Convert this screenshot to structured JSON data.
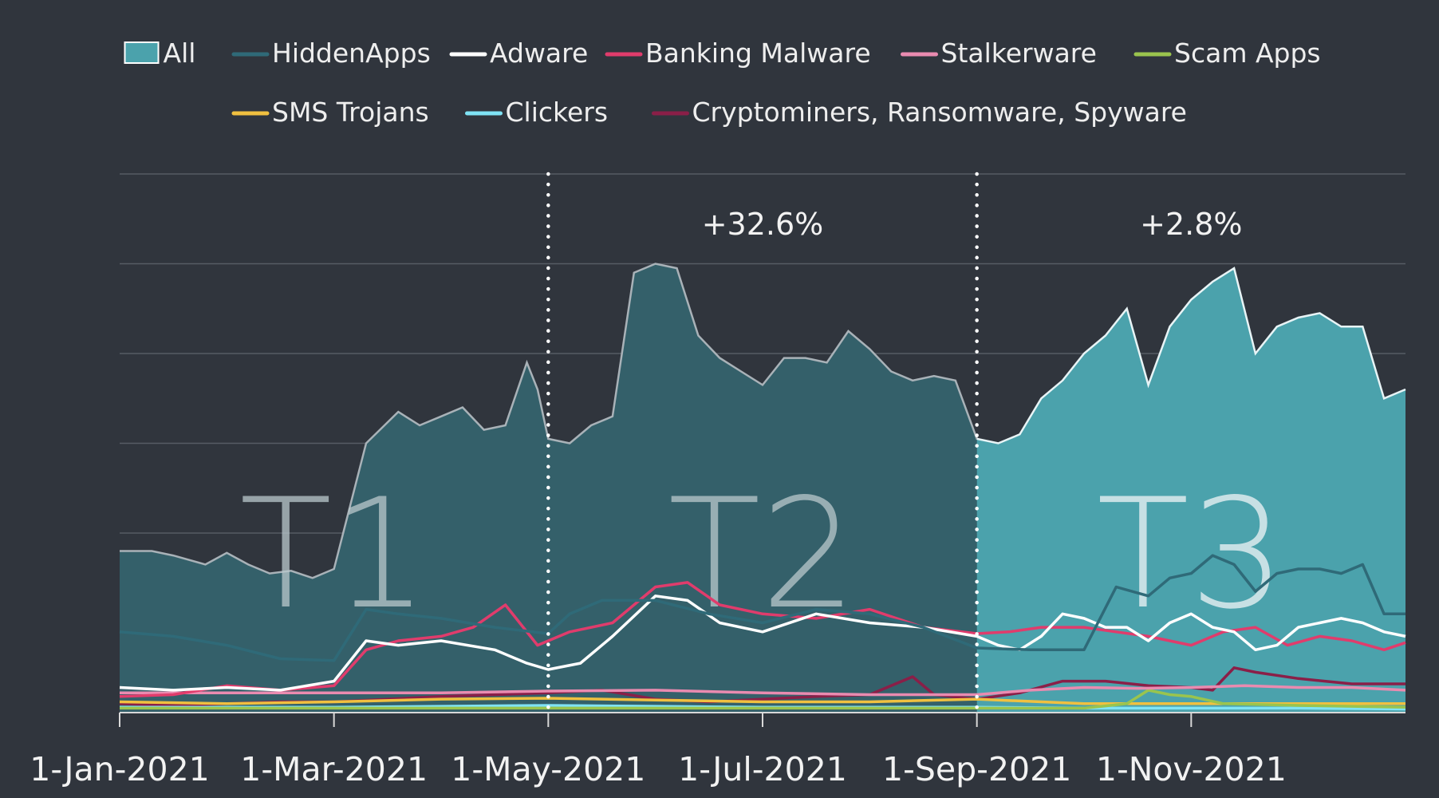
{
  "chart_data": {
    "type": "area",
    "title": "",
    "xlabel": "",
    "ylabel": "",
    "x_ticks": [
      "1-Jan-2021",
      "1-Mar-2021",
      "1-May-2021",
      "1-Jul-2021",
      "1-Sep-2021",
      "1-Nov-2021"
    ],
    "x_tick_months": [
      0,
      2,
      4,
      6,
      8,
      10
    ],
    "x_range_months": [
      0,
      12
    ],
    "y_range": [
      0,
      6
    ],
    "y_tick_labels_shown": false,
    "grid": true,
    "legend_position": "top",
    "periods": [
      {
        "label": "T1",
        "start_month": 0,
        "end_month": 4,
        "annotation": ""
      },
      {
        "label": "T2",
        "start_month": 4,
        "end_month": 8,
        "annotation": "+32.6%"
      },
      {
        "label": "T3",
        "start_month": 8,
        "end_month": 12,
        "annotation": "+2.8%"
      }
    ],
    "period_dividers_months": [
      4,
      8
    ],
    "series": [
      {
        "name": "All",
        "style": "area",
        "color": "#4ba2ac",
        "points": [
          [
            0,
            1.8
          ],
          [
            0.3,
            1.8
          ],
          [
            0.5,
            1.75
          ],
          [
            0.8,
            1.65
          ],
          [
            1.0,
            1.78
          ],
          [
            1.2,
            1.65
          ],
          [
            1.4,
            1.55
          ],
          [
            1.6,
            1.58
          ],
          [
            1.8,
            1.5
          ],
          [
            2.0,
            1.6
          ],
          [
            2.3,
            3.0
          ],
          [
            2.6,
            3.35
          ],
          [
            2.8,
            3.2
          ],
          [
            3.0,
            3.3
          ],
          [
            3.2,
            3.4
          ],
          [
            3.4,
            3.15
          ],
          [
            3.6,
            3.2
          ],
          [
            3.8,
            3.9
          ],
          [
            3.9,
            3.6
          ],
          [
            4.0,
            3.05
          ],
          [
            4.2,
            3.0
          ],
          [
            4.4,
            3.2
          ],
          [
            4.6,
            3.3
          ],
          [
            4.8,
            4.9
          ],
          [
            5.0,
            5.0
          ],
          [
            5.2,
            4.95
          ],
          [
            5.4,
            4.2
          ],
          [
            5.6,
            3.95
          ],
          [
            5.8,
            3.8
          ],
          [
            6.0,
            3.65
          ],
          [
            6.2,
            3.95
          ],
          [
            6.4,
            3.95
          ],
          [
            6.6,
            3.9
          ],
          [
            6.8,
            4.25
          ],
          [
            7.0,
            4.05
          ],
          [
            7.2,
            3.8
          ],
          [
            7.4,
            3.7
          ],
          [
            7.6,
            3.75
          ],
          [
            7.8,
            3.7
          ],
          [
            8.0,
            3.05
          ],
          [
            8.2,
            3.0
          ],
          [
            8.4,
            3.1
          ],
          [
            8.6,
            3.5
          ],
          [
            8.8,
            3.7
          ],
          [
            9.0,
            4.0
          ],
          [
            9.2,
            4.2
          ],
          [
            9.4,
            4.5
          ],
          [
            9.6,
            3.65
          ],
          [
            9.8,
            4.3
          ],
          [
            10.0,
            4.6
          ],
          [
            10.2,
            4.8
          ],
          [
            10.4,
            4.95
          ],
          [
            10.6,
            4.0
          ],
          [
            10.8,
            4.3
          ],
          [
            11.0,
            4.4
          ],
          [
            11.2,
            4.45
          ],
          [
            11.4,
            4.3
          ],
          [
            11.6,
            4.3
          ],
          [
            11.8,
            3.5
          ],
          [
            12.0,
            3.6
          ]
        ]
      },
      {
        "name": "HiddenApps",
        "style": "line",
        "color": "#2f6a78",
        "points": [
          [
            0,
            0.9
          ],
          [
            0.5,
            0.85
          ],
          [
            1.0,
            0.75
          ],
          [
            1.5,
            0.6
          ],
          [
            2.0,
            0.58
          ],
          [
            2.3,
            1.15
          ],
          [
            2.6,
            1.1
          ],
          [
            3.0,
            1.05
          ],
          [
            3.5,
            0.95
          ],
          [
            4.0,
            0.88
          ],
          [
            4.2,
            1.1
          ],
          [
            4.5,
            1.25
          ],
          [
            5.0,
            1.25
          ],
          [
            5.5,
            1.1
          ],
          [
            6.0,
            1.0
          ],
          [
            6.5,
            1.15
          ],
          [
            7.0,
            1.1
          ],
          [
            7.5,
            0.95
          ],
          [
            8.0,
            0.72
          ],
          [
            8.5,
            0.7
          ],
          [
            9.0,
            0.7
          ],
          [
            9.3,
            1.4
          ],
          [
            9.6,
            1.3
          ],
          [
            9.8,
            1.5
          ],
          [
            10.0,
            1.55
          ],
          [
            10.2,
            1.75
          ],
          [
            10.4,
            1.65
          ],
          [
            10.6,
            1.35
          ],
          [
            10.8,
            1.55
          ],
          [
            11.0,
            1.6
          ],
          [
            11.2,
            1.6
          ],
          [
            11.4,
            1.55
          ],
          [
            11.6,
            1.65
          ],
          [
            11.8,
            1.1
          ],
          [
            12.0,
            1.1
          ]
        ]
      },
      {
        "name": "Adware",
        "style": "line",
        "color": "#ffffff",
        "points": [
          [
            0,
            0.28
          ],
          [
            0.5,
            0.25
          ],
          [
            1.0,
            0.28
          ],
          [
            1.5,
            0.25
          ],
          [
            2.0,
            0.35
          ],
          [
            2.3,
            0.8
          ],
          [
            2.6,
            0.75
          ],
          [
            3.0,
            0.8
          ],
          [
            3.5,
            0.7
          ],
          [
            3.8,
            0.55
          ],
          [
            4.0,
            0.48
          ],
          [
            4.3,
            0.55
          ],
          [
            4.6,
            0.85
          ],
          [
            5.0,
            1.3
          ],
          [
            5.3,
            1.25
          ],
          [
            5.6,
            1.0
          ],
          [
            6.0,
            0.9
          ],
          [
            6.5,
            1.1
          ],
          [
            7.0,
            1.0
          ],
          [
            7.5,
            0.95
          ],
          [
            8.0,
            0.85
          ],
          [
            8.2,
            0.75
          ],
          [
            8.4,
            0.7
          ],
          [
            8.6,
            0.85
          ],
          [
            8.8,
            1.1
          ],
          [
            9.0,
            1.05
          ],
          [
            9.2,
            0.95
          ],
          [
            9.4,
            0.95
          ],
          [
            9.6,
            0.8
          ],
          [
            9.8,
            1.0
          ],
          [
            10.0,
            1.1
          ],
          [
            10.2,
            0.95
          ],
          [
            10.4,
            0.9
          ],
          [
            10.6,
            0.7
          ],
          [
            10.8,
            0.75
          ],
          [
            11.0,
            0.95
          ],
          [
            11.2,
            1.0
          ],
          [
            11.4,
            1.05
          ],
          [
            11.6,
            1.0
          ],
          [
            11.8,
            0.9
          ],
          [
            12.0,
            0.85
          ]
        ]
      },
      {
        "name": "Banking Malware",
        "style": "line",
        "color": "#e03c6c",
        "points": [
          [
            0,
            0.18
          ],
          [
            0.5,
            0.2
          ],
          [
            1.0,
            0.3
          ],
          [
            1.5,
            0.25
          ],
          [
            2.0,
            0.3
          ],
          [
            2.3,
            0.7
          ],
          [
            2.6,
            0.8
          ],
          [
            3.0,
            0.85
          ],
          [
            3.3,
            0.95
          ],
          [
            3.6,
            1.2
          ],
          [
            3.9,
            0.75
          ],
          [
            4.2,
            0.9
          ],
          [
            4.6,
            1.0
          ],
          [
            5.0,
            1.4
          ],
          [
            5.3,
            1.45
          ],
          [
            5.6,
            1.2
          ],
          [
            6.0,
            1.1
          ],
          [
            6.5,
            1.05
          ],
          [
            7.0,
            1.15
          ],
          [
            7.5,
            0.95
          ],
          [
            8.0,
            0.88
          ],
          [
            8.3,
            0.9
          ],
          [
            8.6,
            0.95
          ],
          [
            9.0,
            0.95
          ],
          [
            9.3,
            0.9
          ],
          [
            9.6,
            0.85
          ],
          [
            10.0,
            0.75
          ],
          [
            10.3,
            0.9
          ],
          [
            10.6,
            0.95
          ],
          [
            10.9,
            0.75
          ],
          [
            11.2,
            0.85
          ],
          [
            11.5,
            0.8
          ],
          [
            11.8,
            0.7
          ],
          [
            12.0,
            0.78
          ]
        ]
      },
      {
        "name": "Stalkerware",
        "style": "line",
        "color": "#e98bb0",
        "points": [
          [
            0,
            0.22
          ],
          [
            1.0,
            0.22
          ],
          [
            2.0,
            0.22
          ],
          [
            3.0,
            0.22
          ],
          [
            4.0,
            0.24
          ],
          [
            5.0,
            0.25
          ],
          [
            6.0,
            0.22
          ],
          [
            7.0,
            0.2
          ],
          [
            8.0,
            0.2
          ],
          [
            8.5,
            0.25
          ],
          [
            9.0,
            0.28
          ],
          [
            9.5,
            0.27
          ],
          [
            10.0,
            0.28
          ],
          [
            10.5,
            0.3
          ],
          [
            11.0,
            0.28
          ],
          [
            11.5,
            0.28
          ],
          [
            12.0,
            0.25
          ]
        ]
      },
      {
        "name": "Scam Apps",
        "style": "line",
        "color": "#9ac44e",
        "points": [
          [
            0,
            0.05
          ],
          [
            1.0,
            0.05
          ],
          [
            2.0,
            0.05
          ],
          [
            3.0,
            0.05
          ],
          [
            4.0,
            0.05
          ],
          [
            5.0,
            0.05
          ],
          [
            6.0,
            0.05
          ],
          [
            7.0,
            0.05
          ],
          [
            8.0,
            0.05
          ],
          [
            9.0,
            0.05
          ],
          [
            9.4,
            0.1
          ],
          [
            9.6,
            0.25
          ],
          [
            9.8,
            0.2
          ],
          [
            10.0,
            0.18
          ],
          [
            10.3,
            0.1
          ],
          [
            11.0,
            0.08
          ],
          [
            12.0,
            0.06
          ]
        ]
      },
      {
        "name": "SMS Trojans",
        "style": "line",
        "color": "#f0c040",
        "points": [
          [
            0,
            0.12
          ],
          [
            1.0,
            0.1
          ],
          [
            2.0,
            0.12
          ],
          [
            3.0,
            0.15
          ],
          [
            4.0,
            0.16
          ],
          [
            5.0,
            0.14
          ],
          [
            6.0,
            0.12
          ],
          [
            7.0,
            0.12
          ],
          [
            8.0,
            0.15
          ],
          [
            9.0,
            0.1
          ],
          [
            10.0,
            0.1
          ],
          [
            11.0,
            0.1
          ],
          [
            12.0,
            0.1
          ]
        ]
      },
      {
        "name": "Clickers",
        "style": "line",
        "color": "#7fe3f5",
        "points": [
          [
            0,
            0.06
          ],
          [
            1.0,
            0.06
          ],
          [
            2.0,
            0.06
          ],
          [
            3.0,
            0.07
          ],
          [
            4.0,
            0.08
          ],
          [
            5.0,
            0.07
          ],
          [
            6.0,
            0.06
          ],
          [
            7.0,
            0.06
          ],
          [
            8.0,
            0.06
          ],
          [
            9.0,
            0.05
          ],
          [
            10.0,
            0.05
          ],
          [
            11.0,
            0.05
          ],
          [
            12.0,
            0.04
          ]
        ]
      },
      {
        "name": "Cryptominers, Ransomware, Spyware",
        "style": "line",
        "color": "#8a1f48",
        "points": [
          [
            0,
            0.1
          ],
          [
            0.5,
            0.08
          ],
          [
            1.0,
            0.1
          ],
          [
            1.5,
            0.12
          ],
          [
            2.0,
            0.12
          ],
          [
            2.5,
            0.15
          ],
          [
            3.0,
            0.18
          ],
          [
            3.5,
            0.2
          ],
          [
            4.0,
            0.22
          ],
          [
            4.5,
            0.25
          ],
          [
            5.0,
            0.15
          ],
          [
            5.5,
            0.12
          ],
          [
            6.0,
            0.15
          ],
          [
            6.5,
            0.18
          ],
          [
            7.0,
            0.2
          ],
          [
            7.4,
            0.4
          ],
          [
            7.6,
            0.2
          ],
          [
            8.0,
            0.15
          ],
          [
            8.4,
            0.22
          ],
          [
            8.8,
            0.35
          ],
          [
            9.2,
            0.35
          ],
          [
            9.6,
            0.3
          ],
          [
            10.0,
            0.28
          ],
          [
            10.2,
            0.25
          ],
          [
            10.4,
            0.5
          ],
          [
            10.6,
            0.45
          ],
          [
            11.0,
            0.38
          ],
          [
            11.5,
            0.32
          ],
          [
            12.0,
            0.32
          ]
        ]
      }
    ]
  }
}
